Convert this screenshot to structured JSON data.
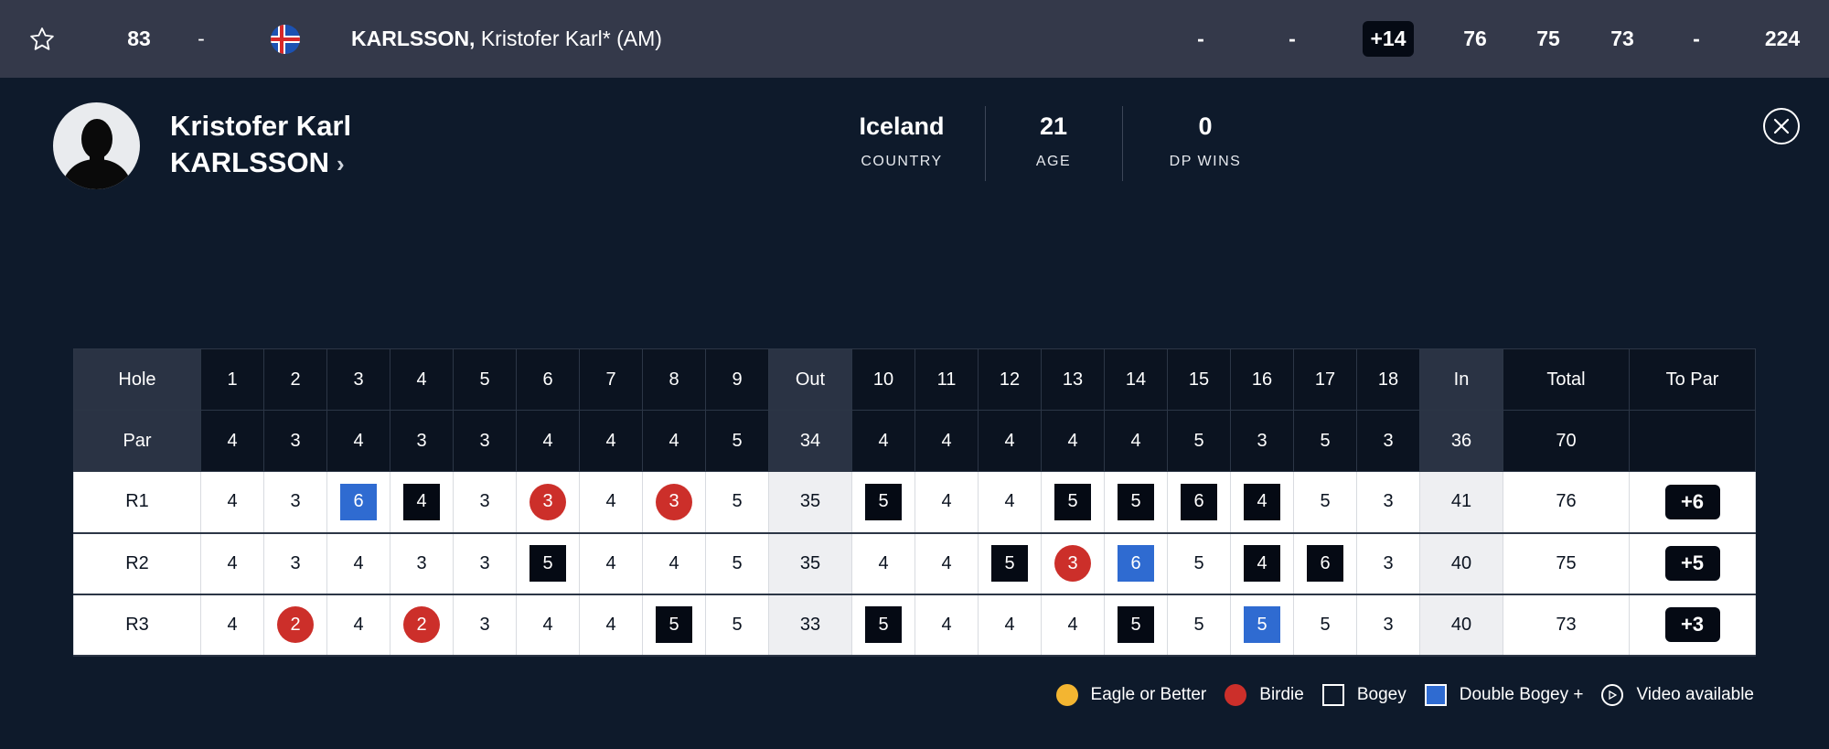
{
  "leaderboard_row": {
    "position": "83",
    "movement": "-",
    "country_flag": "iceland-flag-icon",
    "surname": "KARLSSON,",
    "given": "Kristofer Karl* (AM)",
    "col_a": "-",
    "col_b": "-",
    "to_par": "+14",
    "r1": "76",
    "r2": "75",
    "r3": "73",
    "r4": "-",
    "total": "224"
  },
  "profile": {
    "first_name": "Kristofer Karl",
    "last_name": "KARLSSON",
    "stats": [
      {
        "value": "Iceland",
        "label": "COUNTRY"
      },
      {
        "value": "21",
        "label": "AGE"
      },
      {
        "value": "0",
        "label": "DP WINS"
      }
    ]
  },
  "scorecard": {
    "hole_label": "Hole",
    "par_label": "Par",
    "columns": [
      "1",
      "2",
      "3",
      "4",
      "5",
      "6",
      "7",
      "8",
      "9",
      "Out",
      "10",
      "11",
      "12",
      "13",
      "14",
      "15",
      "16",
      "17",
      "18",
      "In",
      "Total",
      "To Par"
    ],
    "par": [
      "4",
      "3",
      "4",
      "3",
      "3",
      "4",
      "4",
      "4",
      "5",
      "34",
      "4",
      "4",
      "4",
      "4",
      "4",
      "5",
      "3",
      "5",
      "3",
      "36",
      "70",
      ""
    ],
    "rounds": [
      {
        "label": "R1",
        "scores": [
          "4",
          "3",
          "6",
          "4",
          "3",
          "3",
          "4",
          "3",
          "5",
          "35",
          "5",
          "4",
          "4",
          "5",
          "5",
          "6",
          "4",
          "5",
          "3",
          "41",
          "76"
        ],
        "marks": [
          "",
          "",
          "dbogey",
          "bogey",
          "",
          "birdie",
          "",
          "birdie",
          "",
          "",
          "bogey",
          "",
          "",
          "bogey",
          "bogey",
          "bogey",
          "bogey",
          "",
          "",
          "",
          ""
        ],
        "to_par": "+6"
      },
      {
        "label": "R2",
        "scores": [
          "4",
          "3",
          "4",
          "3",
          "3",
          "5",
          "4",
          "4",
          "5",
          "35",
          "4",
          "4",
          "5",
          "3",
          "6",
          "5",
          "4",
          "6",
          "3",
          "40",
          "75"
        ],
        "marks": [
          "",
          "",
          "",
          "",
          "",
          "bogey",
          "",
          "",
          "",
          "",
          "",
          "",
          "bogey",
          "birdie",
          "dbogey",
          "",
          "bogey",
          "bogey",
          "",
          "",
          ""
        ],
        "to_par": "+5"
      },
      {
        "label": "R3",
        "scores": [
          "4",
          "2",
          "4",
          "2",
          "3",
          "4",
          "4",
          "5",
          "5",
          "33",
          "5",
          "4",
          "4",
          "4",
          "5",
          "5",
          "5",
          "5",
          "3",
          "40",
          "73"
        ],
        "marks": [
          "",
          "birdie",
          "",
          "birdie",
          "",
          "",
          "",
          "bogey",
          "",
          "",
          "bogey",
          "",
          "",
          "",
          "bogey",
          "",
          "dbogey",
          "",
          "",
          "",
          ""
        ],
        "to_par": "+3"
      }
    ]
  },
  "legend": [
    {
      "label": "Eagle or Better",
      "type": "eagle",
      "color": "#f3b531"
    },
    {
      "label": "Birdie",
      "type": "birdie",
      "color": "#cc2f2a"
    },
    {
      "label": "Bogey",
      "type": "bogey",
      "color": "#050a14"
    },
    {
      "label": "Double Bogey +",
      "type": "dbogey",
      "color": "#2f6bd1"
    },
    {
      "label": "Video available",
      "type": "video",
      "color": "#ffffff"
    }
  ]
}
